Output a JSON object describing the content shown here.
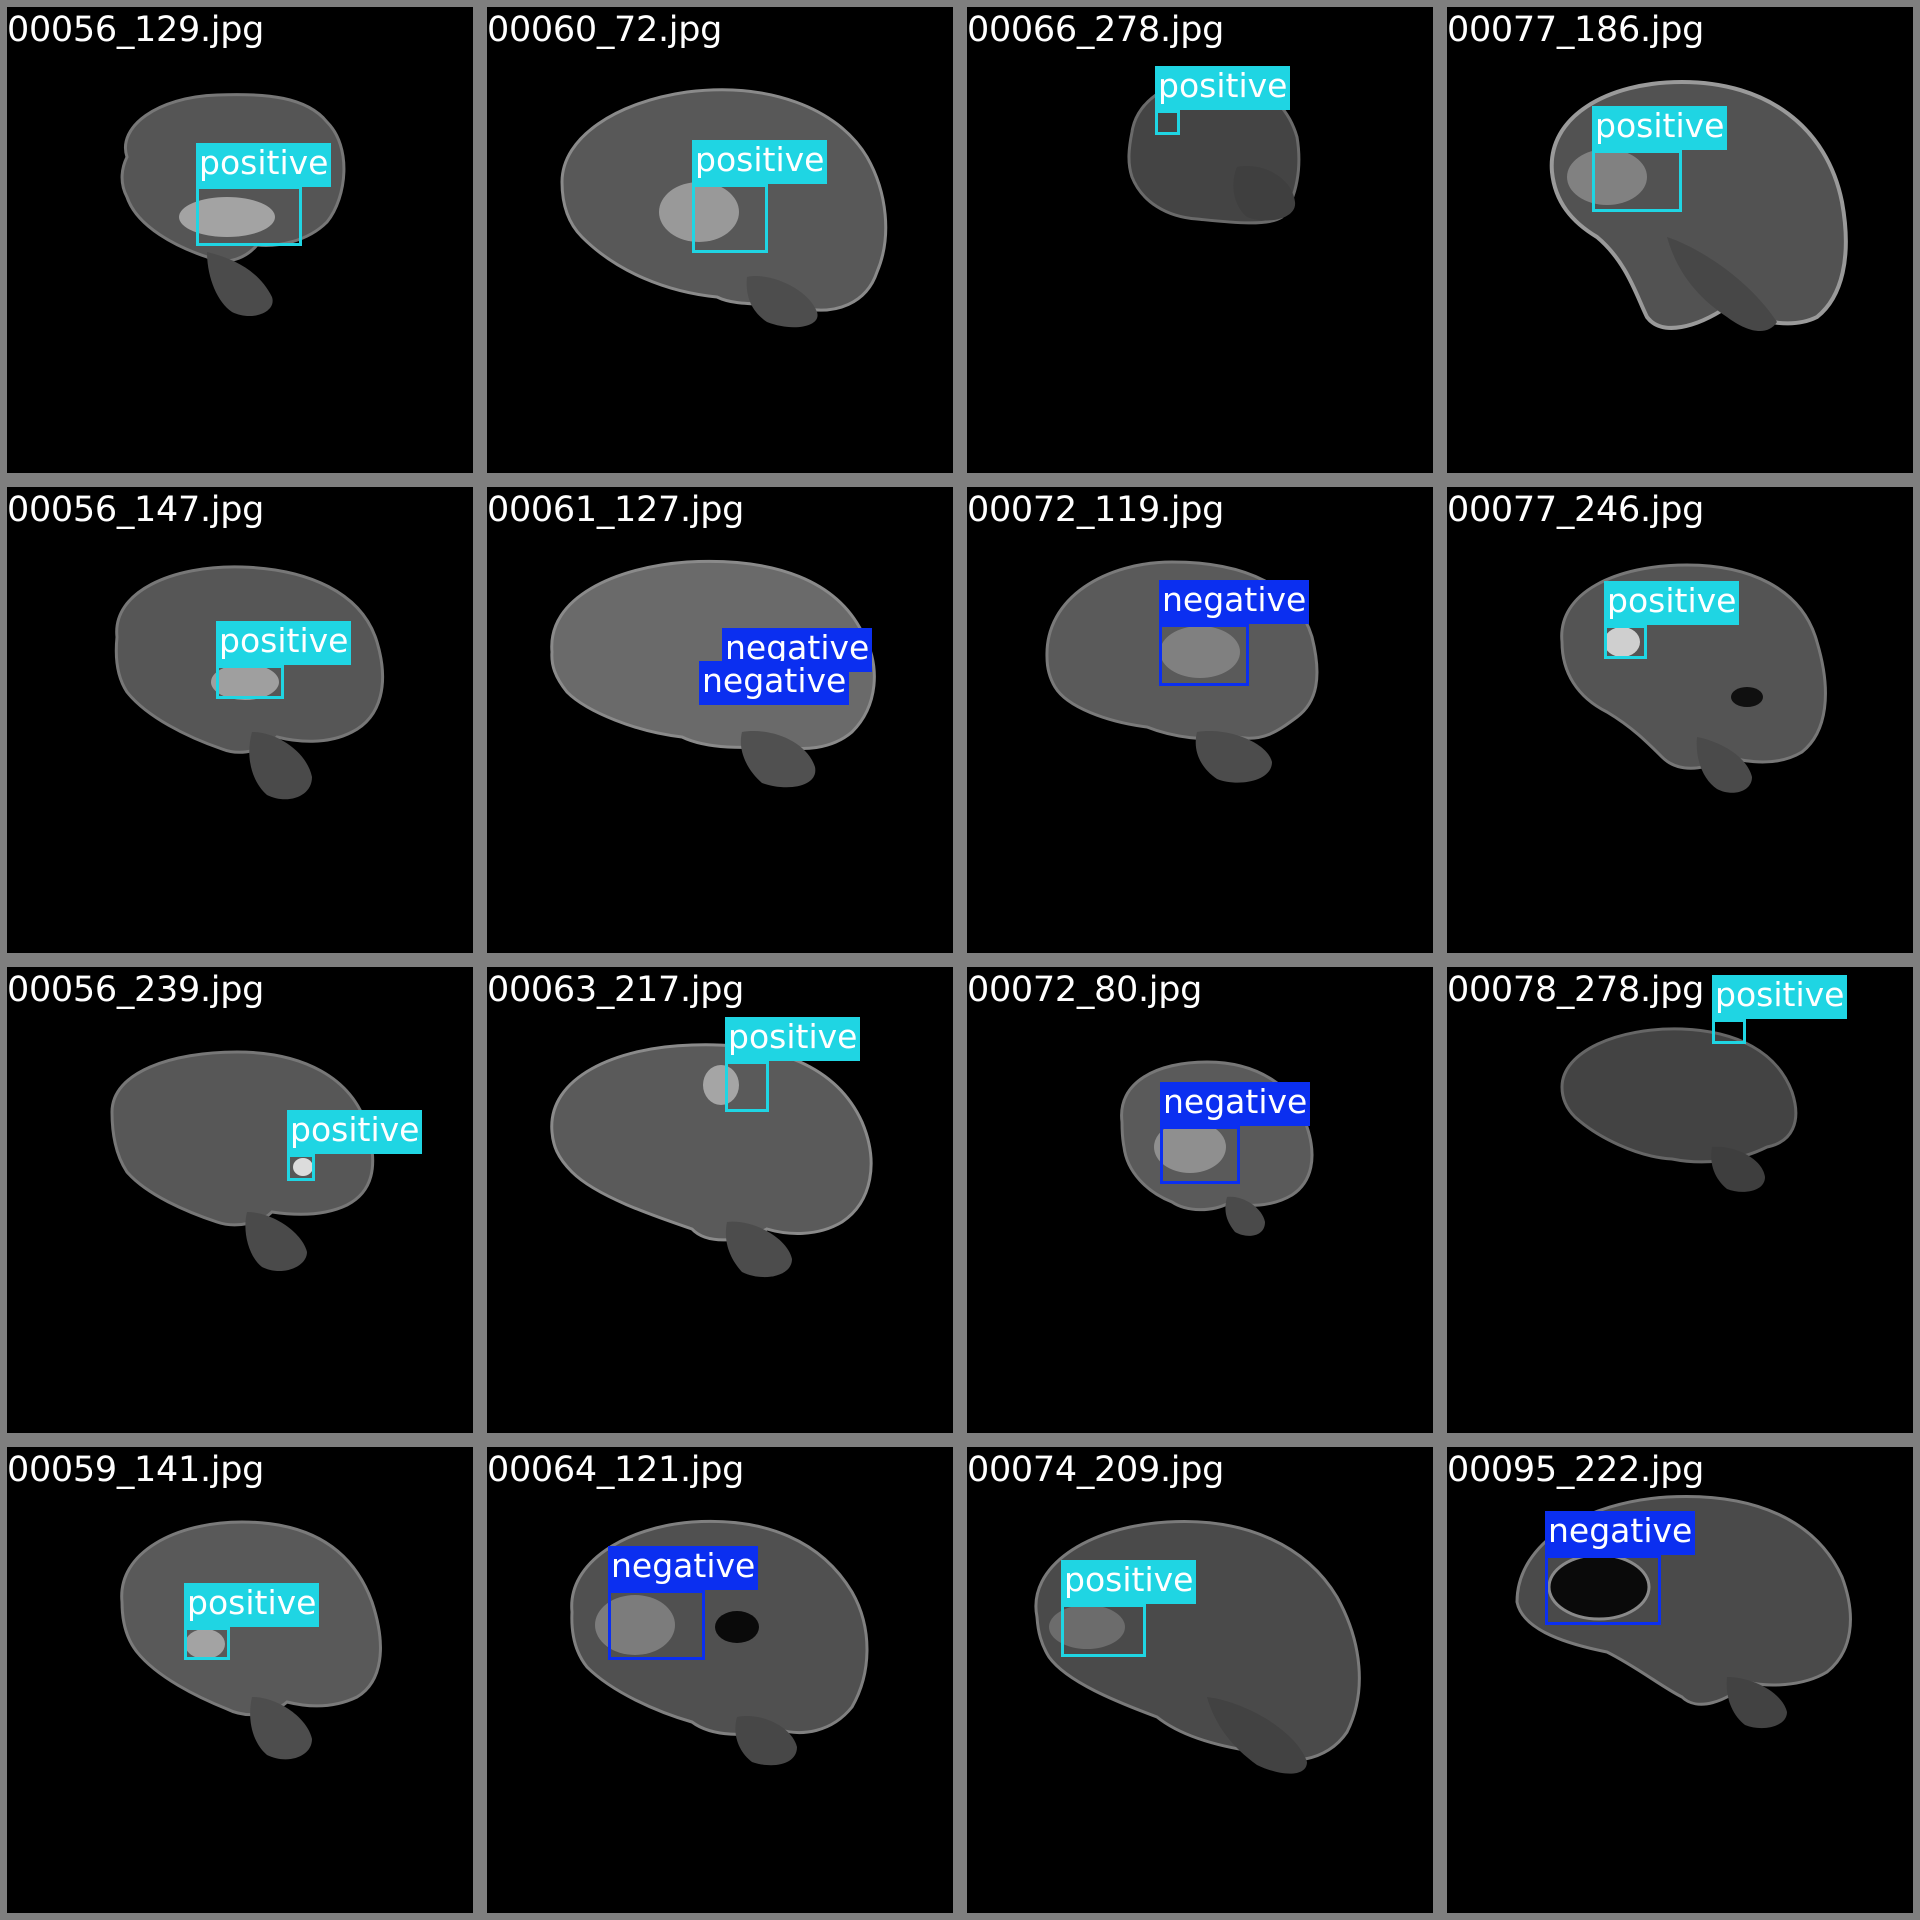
{
  "colors": {
    "positive": "#1fd5e3",
    "negative": "#0b2ff0",
    "background": "#000000",
    "border": "#7f7f7f"
  },
  "tiles": [
    {
      "filename": "00056_129.jpg",
      "detections": [
        {
          "label": "positive"
        }
      ]
    },
    {
      "filename": "00060_72.jpg",
      "detections": [
        {
          "label": "positive"
        }
      ]
    },
    {
      "filename": "00066_278.jpg",
      "detections": [
        {
          "label": "positive"
        }
      ]
    },
    {
      "filename": "00077_186.jpg",
      "detections": [
        {
          "label": "positive"
        }
      ]
    },
    {
      "filename": "00056_147.jpg",
      "detections": [
        {
          "label": "positive"
        }
      ]
    },
    {
      "filename": "00061_127.jpg",
      "detections": [
        {
          "label": "negative"
        },
        {
          "label": "negative"
        }
      ]
    },
    {
      "filename": "00072_119.jpg",
      "detections": [
        {
          "label": "negative"
        }
      ]
    },
    {
      "filename": "00077_246.jpg",
      "detections": [
        {
          "label": "positive"
        }
      ]
    },
    {
      "filename": "00056_239.jpg",
      "detections": [
        {
          "label": "positive"
        }
      ]
    },
    {
      "filename": "00063_217.jpg",
      "detections": [
        {
          "label": "positive"
        }
      ]
    },
    {
      "filename": "00072_80.jpg",
      "detections": [
        {
          "label": "negative"
        }
      ]
    },
    {
      "filename": "00078_278.jpg",
      "detections": [
        {
          "label": "positive"
        }
      ]
    },
    {
      "filename": "00059_141.jpg",
      "detections": [
        {
          "label": "positive"
        }
      ]
    },
    {
      "filename": "00064_121.jpg",
      "detections": [
        {
          "label": "negative"
        }
      ]
    },
    {
      "filename": "00074_209.jpg",
      "detections": [
        {
          "label": "positive"
        }
      ]
    },
    {
      "filename": "00095_222.jpg",
      "detections": [
        {
          "label": "negative"
        }
      ]
    }
  ]
}
